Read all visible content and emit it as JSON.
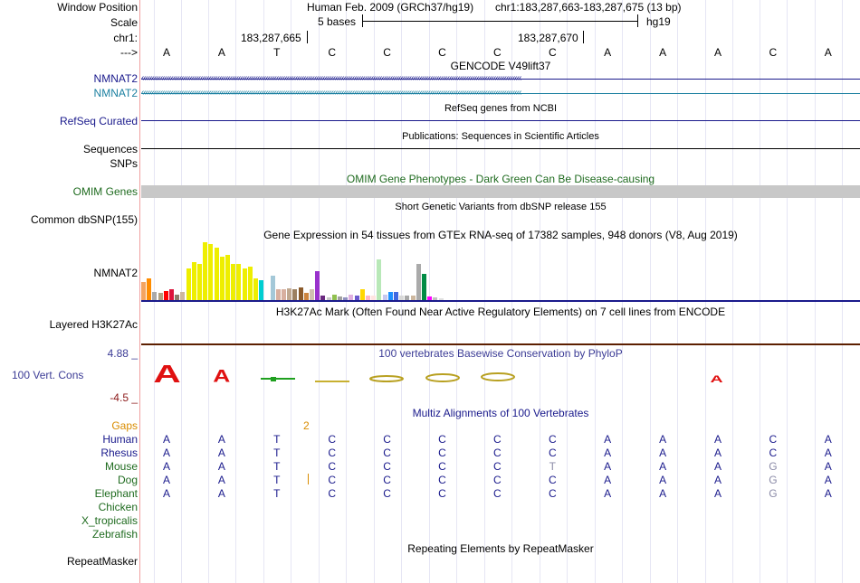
{
  "colors": {
    "navy": "#1a1a8c",
    "teal": "#1a7fa0",
    "omim_green": "#1f6b1f",
    "cons_blue": "#3c3c96",
    "cons_red": "#8c1a1a",
    "gaps_orange": "#d98c00",
    "grid": "#e6e6f4",
    "pink_guide": "#f0a0a0",
    "omim_bar": "#c8c8c8",
    "layered_line": "#5c1f00"
  },
  "header": {
    "window_position_label": "Window Position",
    "assembly": "Human Feb. 2009 (GRCh37/hg19)",
    "position": "chr1:183,287,663-183,287,675 (13 bp)",
    "scale_label": "Scale",
    "scale_text": "5 bases",
    "scale_db": "hg19",
    "chrom_label": "chr1:",
    "coord_1": "183,287,665",
    "coord_2": "183,287,670",
    "strand_label": "--->",
    "sequence": [
      "A",
      "A",
      "T",
      "C",
      "C",
      "C",
      "C",
      "C",
      "A",
      "A",
      "A",
      "C",
      "A"
    ]
  },
  "tracks": {
    "gencode": {
      "title": "GENCODE V49lift37",
      "gene1": "NMNAT2",
      "gene2": "NMNAT2"
    },
    "refseq": {
      "title": "RefSeq genes from NCBI",
      "label": "RefSeq Curated"
    },
    "publications": {
      "title": "Publications: Sequences in Scientific Articles",
      "label1": "Sequences",
      "label2": "SNPs"
    },
    "omim": {
      "title": "OMIM Gene Phenotypes - Dark Green Can Be Disease-causing",
      "label": "OMIM Genes"
    },
    "dbsnp": {
      "title": "Short Genetic Variants from dbSNP release 155",
      "label": "Common dbSNP(155)"
    },
    "gtex": {
      "title": "Gene Expression in 54 tissues from GTEx RNA-seq of 17382 samples, 948 donors (V8, Aug 2019)",
      "label": "NMNAT2"
    },
    "h3k27ac": {
      "title": "H3K27Ac Mark (Often Found Near Active Regulatory Elements) on 7 cell lines from ENCODE",
      "label": "Layered H3K27Ac"
    },
    "conservation": {
      "title": "100 vertebrates Basewise Conservation by PhyloP",
      "label": "100 Vert. Cons",
      "max": "4.88 _",
      "min": "-4.5 _"
    },
    "multiz": {
      "title": "Multiz Alignments of 100 Vertebrates",
      "gaps_label": "Gaps",
      "gap_count": "2",
      "species": [
        {
          "name": "Human",
          "bases": [
            "A",
            "A",
            "T",
            "C",
            "C",
            "C",
            "C",
            "C",
            "A",
            "A",
            "A",
            "C",
            "A"
          ]
        },
        {
          "name": "Rhesus",
          "bases": [
            "A",
            "A",
            "T",
            "C",
            "C",
            "C",
            "C",
            "C",
            "A",
            "A",
            "A",
            "C",
            "A"
          ]
        },
        {
          "name": "Mouse",
          "bases": [
            "A",
            "A",
            "T",
            "C",
            "C",
            "C",
            "C",
            "T",
            "A",
            "A",
            "A",
            "G",
            "A"
          ]
        },
        {
          "name": "Dog",
          "bases": [
            "A",
            "A",
            "T",
            "C",
            "C",
            "C",
            "C",
            "C",
            "A",
            "A",
            "A",
            "G",
            "A"
          ]
        },
        {
          "name": "Elephant",
          "bases": [
            "A",
            "A",
            "T",
            "C",
            "C",
            "C",
            "C",
            "C",
            "A",
            "A",
            "A",
            "G",
            "A"
          ]
        },
        {
          "name": "Chicken",
          "bases": []
        },
        {
          "name": "X_tropicalis",
          "bases": []
        },
        {
          "name": "Zebrafish",
          "bases": []
        }
      ]
    },
    "repeatmasker": {
      "title": "Repeating Elements by RepeatMasker",
      "label": "RepeatMasker"
    }
  },
  "gtex_bars": [
    {
      "v": 0.32,
      "c": "#f4a460"
    },
    {
      "v": 0.38,
      "c": "#ff8c00"
    },
    {
      "v": 0.14,
      "c": "#a9a9a9"
    },
    {
      "v": 0.12,
      "c": "#b0a080"
    },
    {
      "v": 0.16,
      "c": "#ff0000"
    },
    {
      "v": 0.18,
      "c": "#dc143c"
    },
    {
      "v": 0.1,
      "c": "#8b7d6b"
    },
    {
      "v": 0.14,
      "c": "#cdb79e"
    },
    {
      "v": 0.55,
      "c": "#eeee00"
    },
    {
      "v": 0.65,
      "c": "#eeee00"
    },
    {
      "v": 0.62,
      "c": "#eeee00"
    },
    {
      "v": 1.0,
      "c": "#eeee00"
    },
    {
      "v": 0.97,
      "c": "#eeee00"
    },
    {
      "v": 0.9,
      "c": "#eeee00"
    },
    {
      "v": 0.75,
      "c": "#eeee00"
    },
    {
      "v": 0.78,
      "c": "#eeee00"
    },
    {
      "v": 0.62,
      "c": "#eeee00"
    },
    {
      "v": 0.62,
      "c": "#eeee00"
    },
    {
      "v": 0.55,
      "c": "#eeee00"
    },
    {
      "v": 0.58,
      "c": "#eeee00"
    },
    {
      "v": 0.38,
      "c": "#eeee00"
    },
    {
      "v": 0.35,
      "c": "#00ced1"
    },
    {
      "v": 0.0,
      "c": "#ffffff"
    },
    {
      "v": 0.42,
      "c": "#a4c8d8"
    },
    {
      "v": 0.18,
      "c": "#d8b0a0"
    },
    {
      "v": 0.18,
      "c": "#d8b0a0"
    },
    {
      "v": 0.2,
      "c": "#c0a890"
    },
    {
      "v": 0.18,
      "c": "#9c8060"
    },
    {
      "v": 0.22,
      "c": "#8b5a2b"
    },
    {
      "v": 0.12,
      "c": "#cd853f"
    },
    {
      "v": 0.18,
      "c": "#d0c0b0"
    },
    {
      "v": 0.5,
      "c": "#9932cc"
    },
    {
      "v": 0.08,
      "c": "#6b2a80"
    },
    {
      "v": 0.04,
      "c": "#c8c8c8"
    },
    {
      "v": 0.1,
      "c": "#90c050"
    },
    {
      "v": 0.06,
      "c": "#a0a0a0"
    },
    {
      "v": 0.04,
      "c": "#9090c0"
    },
    {
      "v": 0.1,
      "c": "#e0b0e0"
    },
    {
      "v": 0.08,
      "c": "#6a5acd"
    },
    {
      "v": 0.18,
      "c": "#ffd700"
    },
    {
      "v": 0.08,
      "c": "#ffb6c1"
    },
    {
      "v": 0.08,
      "c": "#ffe4e1"
    },
    {
      "v": 0.7,
      "c": "#b8e8b8"
    },
    {
      "v": 0.1,
      "c": "#c8c8f0"
    },
    {
      "v": 0.14,
      "c": "#1e90ff"
    },
    {
      "v": 0.14,
      "c": "#4169e1"
    },
    {
      "v": 0.08,
      "c": "#d8d8d8"
    },
    {
      "v": 0.08,
      "c": "#a8a8a8"
    },
    {
      "v": 0.08,
      "c": "#cdb79e"
    },
    {
      "v": 0.62,
      "c": "#aaaaaa"
    },
    {
      "v": 0.45,
      "c": "#008b45"
    },
    {
      "v": 0.06,
      "c": "#ff00ff"
    },
    {
      "v": 0.04,
      "c": "#c0c0c0"
    },
    {
      "v": 0.03,
      "c": "#e0e0e0"
    }
  ]
}
